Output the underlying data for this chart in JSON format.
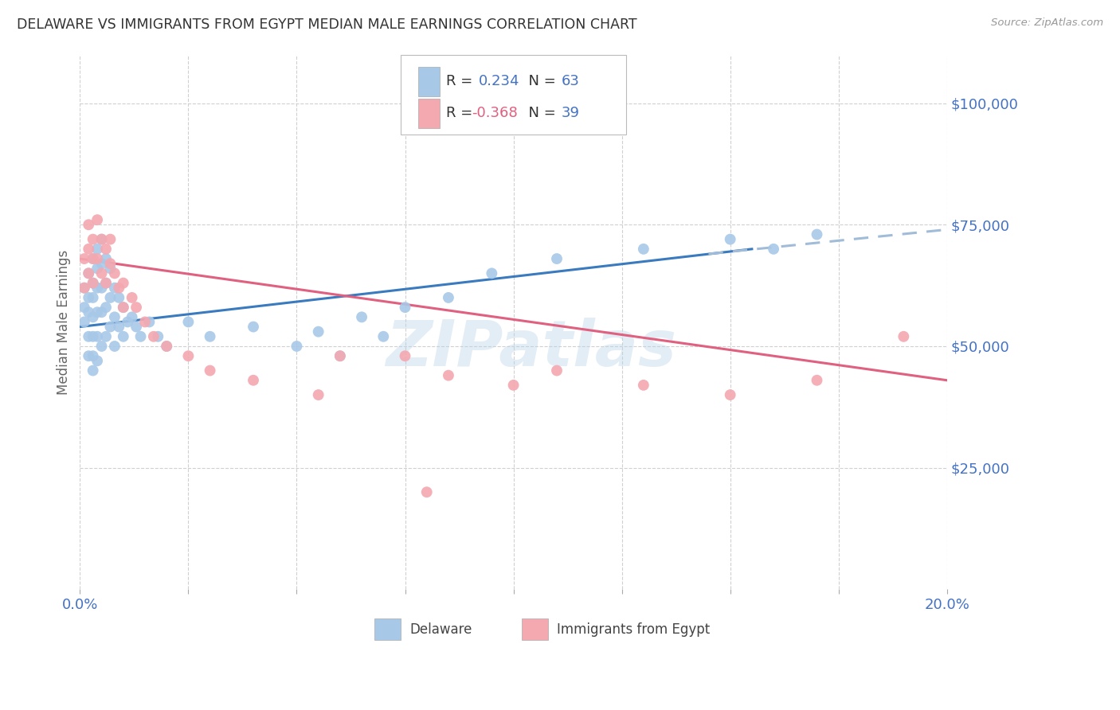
{
  "title": "DELAWARE VS IMMIGRANTS FROM EGYPT MEDIAN MALE EARNINGS CORRELATION CHART",
  "source": "Source: ZipAtlas.com",
  "ylabel": "Median Male Earnings",
  "color_delaware": "#a8c8e8",
  "color_egypt": "#f4a8b0",
  "color_trend_delaware": "#3a7abf",
  "color_trend_egypt": "#e06080",
  "color_dashed": "#a0bcd8",
  "color_blue_text": "#4472c4",
  "color_pink_text": "#e06080",
  "background_color": "#ffffff",
  "grid_color": "#d0d0d0",
  "watermark": "ZIPatlas",
  "xmin": 0.0,
  "xmax": 0.2,
  "ymin": 0,
  "ymax": 110000,
  "yticks": [
    0,
    25000,
    50000,
    75000,
    100000
  ],
  "ytick_labels": [
    "",
    "$25,000",
    "$50,000",
    "$75,000",
    "$100,000"
  ],
  "delaware_x": [
    0.001,
    0.001,
    0.001,
    0.002,
    0.002,
    0.002,
    0.002,
    0.002,
    0.003,
    0.003,
    0.003,
    0.003,
    0.003,
    0.003,
    0.003,
    0.004,
    0.004,
    0.004,
    0.004,
    0.004,
    0.004,
    0.005,
    0.005,
    0.005,
    0.005,
    0.005,
    0.006,
    0.006,
    0.006,
    0.006,
    0.007,
    0.007,
    0.007,
    0.008,
    0.008,
    0.008,
    0.009,
    0.009,
    0.01,
    0.01,
    0.011,
    0.012,
    0.013,
    0.014,
    0.016,
    0.018,
    0.02,
    0.03,
    0.04,
    0.055,
    0.065,
    0.075,
    0.085,
    0.095,
    0.11,
    0.13,
    0.15,
    0.16,
    0.17,
    0.05,
    0.06,
    0.07,
    0.025
  ],
  "delaware_y": [
    62000,
    58000,
    55000,
    65000,
    60000,
    57000,
    52000,
    48000,
    68000,
    63000,
    60000,
    56000,
    52000,
    48000,
    45000,
    70000,
    66000,
    62000,
    57000,
    52000,
    47000,
    72000,
    67000,
    62000,
    57000,
    50000,
    68000,
    63000,
    58000,
    52000,
    66000,
    60000,
    54000,
    62000,
    56000,
    50000,
    60000,
    54000,
    58000,
    52000,
    55000,
    56000,
    54000,
    52000,
    55000,
    52000,
    50000,
    52000,
    54000,
    53000,
    56000,
    58000,
    60000,
    65000,
    68000,
    70000,
    72000,
    70000,
    73000,
    50000,
    48000,
    52000,
    55000
  ],
  "egypt_x": [
    0.001,
    0.001,
    0.002,
    0.002,
    0.002,
    0.003,
    0.003,
    0.003,
    0.004,
    0.004,
    0.005,
    0.005,
    0.006,
    0.006,
    0.007,
    0.007,
    0.008,
    0.009,
    0.01,
    0.01,
    0.012,
    0.013,
    0.015,
    0.017,
    0.02,
    0.025,
    0.03,
    0.04,
    0.055,
    0.06,
    0.075,
    0.085,
    0.1,
    0.11,
    0.13,
    0.15,
    0.17,
    0.19,
    0.08
  ],
  "egypt_y": [
    68000,
    62000,
    75000,
    70000,
    65000,
    72000,
    68000,
    63000,
    76000,
    68000,
    72000,
    65000,
    70000,
    63000,
    72000,
    67000,
    65000,
    62000,
    63000,
    58000,
    60000,
    58000,
    55000,
    52000,
    50000,
    48000,
    45000,
    43000,
    40000,
    48000,
    48000,
    44000,
    42000,
    45000,
    42000,
    40000,
    43000,
    52000,
    20000
  ]
}
